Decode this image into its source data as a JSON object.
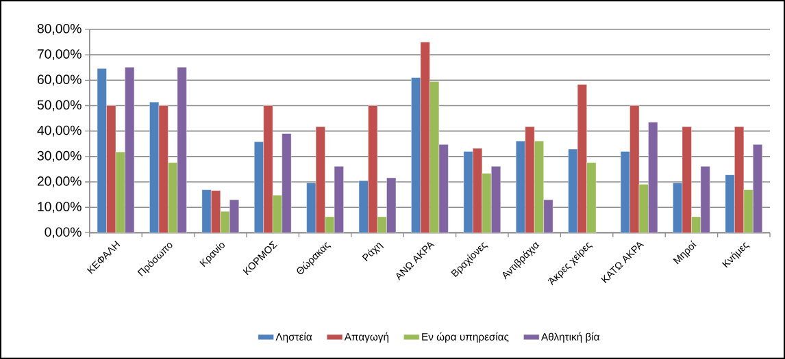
{
  "chart_data": {
    "type": "bar",
    "categories": [
      "ΚΕΦΑΛΗ",
      "Πρόσωπο",
      "Κρανίο",
      "ΚΟΡΜΟΣ",
      "Θώρακας",
      "Ράχη",
      "ΑΝΩ ΑΚΡΑ",
      "Βραχίονες",
      "Αντιβράχια",
      "Άκρες χείρες",
      "ΚΑΤΩ ΑΚΡΑ",
      "Μηροί",
      "Κνήμες"
    ],
    "series": [
      {
        "name": "Ληστεία",
        "color": "#4f81bd",
        "values": [
          64.6,
          51.4,
          16.9,
          35.8,
          19.6,
          20.5,
          61.0,
          32.0,
          36.1,
          32.9,
          32.0,
          19.6,
          22.8
        ]
      },
      {
        "name": "Απαγωγή",
        "color": "#c0504d",
        "values": [
          50.0,
          50.0,
          16.6,
          50.0,
          41.7,
          50.0,
          75.0,
          33.2,
          41.7,
          58.3,
          50.0,
          41.7,
          41.7
        ]
      },
      {
        "name": "Εν ώρα υπηρεσίας",
        "color": "#9bbb59",
        "values": [
          31.8,
          27.6,
          8.4,
          14.8,
          6.3,
          6.3,
          59.5,
          23.4,
          36.1,
          27.6,
          19.1,
          6.3,
          16.9
        ]
      },
      {
        "name": "Αθλητική βία",
        "color": "#8064a2",
        "values": [
          65.1,
          65.1,
          13.0,
          39.0,
          26.1,
          21.6,
          34.7,
          26.1,
          13.0,
          null,
          43.5,
          26.1,
          34.7
        ]
      }
    ],
    "ylim": [
      0,
      80
    ],
    "yticks": [
      {
        "value": 0,
        "label": "0,00%"
      },
      {
        "value": 10,
        "label": "10,00%"
      },
      {
        "value": 20,
        "label": "20,00%"
      },
      {
        "value": 30,
        "label": "30,00%"
      },
      {
        "value": 40,
        "label": "40,00%"
      },
      {
        "value": 50,
        "label": "50,00%"
      },
      {
        "value": 60,
        "label": "60,00%"
      },
      {
        "value": 70,
        "label": "70,00%"
      },
      {
        "value": 80,
        "label": "80,00%"
      }
    ],
    "grid": "y",
    "legend": "bottom"
  }
}
